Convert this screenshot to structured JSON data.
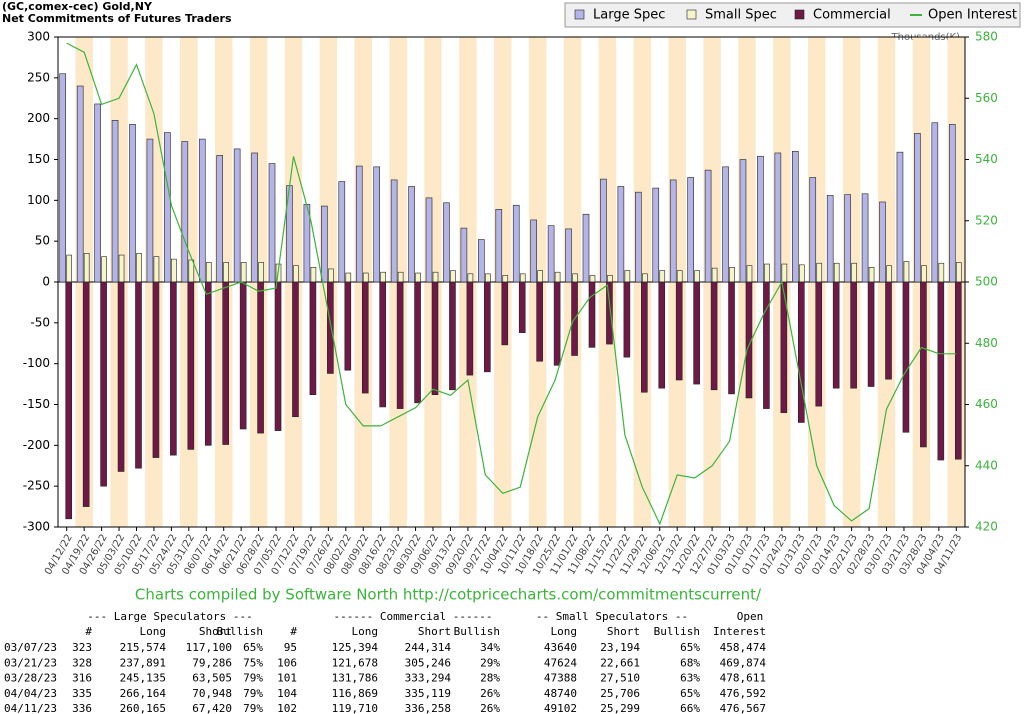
{
  "chart_data": {
    "type": "bar",
    "title": "(GC,comex-cec) Gold,NY",
    "subtitle": "Net Commitments of Futures Traders",
    "y2_label": "Thousands(K)",
    "categories": [
      "04/12/22",
      "04/19/22",
      "04/26/22",
      "05/03/22",
      "05/10/22",
      "05/17/22",
      "05/24/22",
      "05/31/22",
      "06/07/22",
      "06/14/22",
      "06/21/22",
      "06/28/22",
      "07/05/22",
      "07/12/22",
      "07/19/22",
      "07/26/22",
      "08/02/22",
      "08/09/22",
      "08/16/22",
      "08/23/22",
      "08/30/22",
      "09/06/22",
      "09/13/22",
      "09/20/22",
      "09/27/22",
      "10/04/22",
      "10/11/22",
      "10/18/22",
      "10/25/22",
      "11/01/22",
      "11/08/22",
      "11/15/22",
      "11/22/22",
      "11/29/22",
      "12/06/22",
      "12/13/22",
      "12/20/22",
      "12/27/22",
      "01/03/23",
      "01/10/23",
      "01/17/23",
      "01/24/23",
      "01/31/23",
      "02/07/23",
      "02/14/23",
      "02/21/23",
      "02/28/23",
      "03/07/23",
      "03/21/23",
      "03/28/23",
      "04/04/23",
      "04/11/23"
    ],
    "series": [
      {
        "name": "Large Spec",
        "color": "#b4b4e6",
        "values": [
          255,
          240,
          218,
          198,
          193,
          175,
          183,
          172,
          175,
          155,
          163,
          158,
          145,
          118,
          95,
          93,
          123,
          142,
          141,
          125,
          117,
          103,
          97,
          66,
          52,
          89,
          94,
          76,
          69,
          65,
          83,
          126,
          117,
          110,
          115,
          125,
          128,
          137,
          141,
          150,
          154,
          158,
          160,
          128,
          106,
          107,
          108,
          98,
          159,
          182,
          195,
          193
        ]
      },
      {
        "name": "Small Spec",
        "color": "#f5f5c8",
        "values": [
          33,
          35,
          31,
          33,
          35,
          31,
          28,
          27,
          24,
          24,
          24,
          24,
          22,
          20,
          18,
          16,
          11,
          11,
          12,
          12,
          11,
          12,
          14,
          10,
          10,
          8,
          10,
          14,
          12,
          10,
          8,
          8,
          14,
          10,
          14,
          14,
          14,
          17,
          18,
          20,
          22,
          22,
          21,
          23,
          23,
          23,
          18,
          20,
          25,
          20,
          23,
          24
        ]
      },
      {
        "name": "Commercial",
        "color": "#6e1946",
        "values": [
          -290,
          -275,
          -250,
          -232,
          -228,
          -215,
          -212,
          -205,
          -200,
          -199,
          -180,
          -185,
          -182,
          -165,
          -138,
          -112,
          -108,
          -136,
          -153,
          -155,
          -148,
          -138,
          -132,
          -114,
          -110,
          -77,
          -62,
          -97,
          -102,
          -90,
          -80,
          -76,
          -92,
          -135,
          -130,
          -120,
          -125,
          -132,
          -137,
          -142,
          -155,
          -160,
          -172,
          -152,
          -130,
          -130,
          -128,
          -119,
          -184,
          -202,
          -218,
          -217
        ]
      },
      {
        "name": "Open Interest",
        "color": "#3cb43c",
        "axis": "y2",
        "type": "line",
        "values": [
          578,
          575,
          558,
          560,
          571,
          555,
          525,
          510,
          496,
          498,
          500,
          497,
          498,
          541,
          520,
          490,
          460,
          453,
          453,
          456,
          459,
          465,
          463,
          468,
          437,
          431,
          433,
          456,
          468,
          487,
          495,
          499,
          450,
          433,
          421,
          437,
          436,
          440,
          448,
          478,
          490,
          500,
          470,
          440,
          427,
          422,
          426,
          458.474,
          469.874,
          478.611,
          476.592,
          476.567
        ]
      }
    ],
    "ylim": [
      -300,
      300
    ],
    "yticks": [
      -300,
      -250,
      -200,
      -150,
      -100,
      -50,
      0,
      50,
      100,
      150,
      200,
      250,
      300
    ],
    "y2lim": [
      420,
      580
    ],
    "y2ticks": [
      420,
      440,
      460,
      480,
      500,
      520,
      540,
      560,
      580
    ],
    "legend": "top-right",
    "band_color": "#fde8c8"
  },
  "credit": "Charts compiled by Software North  http://cotpricecharts.com/commitmentscurrent/",
  "table": {
    "groups": [
      "--- Large Speculators ---",
      "------ Commercial ------",
      "-- Small Speculators --",
      "Open"
    ],
    "columns": [
      "#",
      "Long",
      "Short",
      "Bullish",
      "#",
      "Long",
      "Short",
      "Bullish",
      "Long",
      "Short",
      "Bullish",
      "Interest"
    ],
    "rows": [
      [
        "03/07/23",
        "323",
        "215,574",
        "117,100",
        "65%",
        "95",
        "125,394",
        "244,314",
        "34%",
        "43640",
        "23,194",
        "65%",
        "458,474"
      ],
      [
        "03/21/23",
        "328",
        "237,891",
        "79,286",
        "75%",
        "106",
        "121,678",
        "305,246",
        "29%",
        "47624",
        "22,661",
        "68%",
        "469,874"
      ],
      [
        "03/28/23",
        "316",
        "245,135",
        "63,505",
        "79%",
        "101",
        "131,786",
        "333,294",
        "28%",
        "47388",
        "27,510",
        "63%",
        "478,611"
      ],
      [
        "04/04/23",
        "335",
        "266,164",
        "70,948",
        "79%",
        "104",
        "116,869",
        "335,119",
        "26%",
        "48740",
        "25,706",
        "65%",
        "476,592"
      ],
      [
        "04/11/23",
        "336",
        "260,165",
        "67,420",
        "79%",
        "102",
        "119,710",
        "336,258",
        "26%",
        "49102",
        "25,299",
        "66%",
        "476,567"
      ]
    ]
  }
}
